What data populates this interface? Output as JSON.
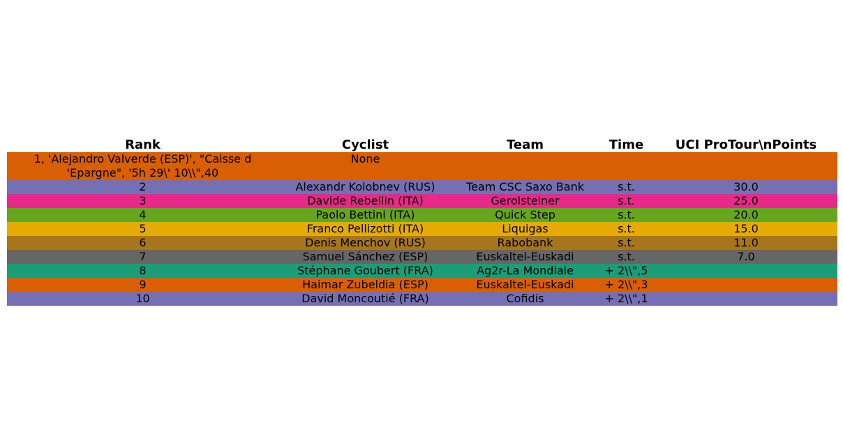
{
  "chart_data": {
    "type": "table",
    "columns": [
      "Rank",
      "Cyclist",
      "Team",
      "Time",
      "UCI ProTour\\nPoints"
    ],
    "rows": [
      [
        "1, 'Alejandro Valverde (ESP)', \"Caisse d 'Epargne\", '5h 29\\' 10\\\\\",40",
        "None",
        "",
        "",
        ""
      ],
      [
        "2",
        "Alexandr Kolobnev (RUS)",
        "Team CSC Saxo Bank",
        "s.t.",
        "30.0"
      ],
      [
        "3",
        "Davide Rebellin (ITA)",
        "Gerolsteiner",
        "s.t.",
        "25.0"
      ],
      [
        "4",
        "Paolo Bettini (ITA)",
        "Quick Step",
        "s.t.",
        "20.0"
      ],
      [
        "5",
        "Franco Pellizotti (ITA)",
        "Liquigas",
        "s.t.",
        "15.0"
      ],
      [
        "6",
        "Denis Menchov (RUS)",
        "Rabobank",
        "s.t.",
        "11.0"
      ],
      [
        "7",
        "Samuel Sánchez (ESP)",
        "Euskaltel-Euskadi",
        "s.t.",
        "7.0"
      ],
      [
        "8",
        "Stéphane Goubert (FRA)",
        "Ag2r-La Mondiale",
        "+ 2\\\\\",5",
        ""
      ],
      [
        "9",
        "Haimar Zubeldia (ESP)",
        "Euskaltel-Euskadi",
        "+ 2\\\\\",3",
        ""
      ],
      [
        "10",
        "David Moncoutié (FRA)",
        "Cofidis",
        "+ 2\\\\\",1",
        ""
      ]
    ],
    "row_colors": [
      "#d95f02",
      "#7570b3",
      "#e7298a",
      "#66a61e",
      "#e6ab02",
      "#a6761d",
      "#666666",
      "#1b9e77",
      "#d95f02",
      "#7570b3"
    ]
  }
}
